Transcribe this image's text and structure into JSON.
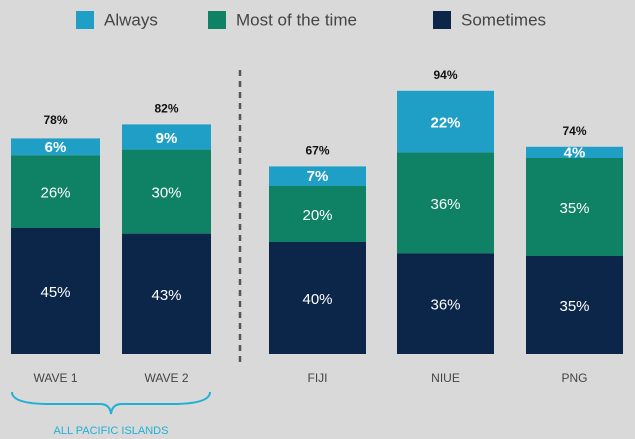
{
  "chart_data": {
    "type": "stacked_bar",
    "categories": [
      "WAVE 1",
      "WAVE 2",
      "FIJI",
      "NIUE",
      "PNG"
    ],
    "series": [
      {
        "name": "Always",
        "color": "#1f9ec6",
        "values": [
          6,
          9,
          7,
          22,
          4
        ],
        "value_labels": [
          "6%",
          "9%",
          "7%",
          "22%",
          "4%"
        ]
      },
      {
        "name": "Most of the time",
        "color": "#0f8165",
        "values": [
          26,
          30,
          20,
          36,
          35
        ],
        "value_labels": [
          "26%",
          "30%",
          "20%",
          "36%",
          "35%"
        ]
      },
      {
        "name": "Sometimes",
        "color": "#0b2649",
        "values": [
          45,
          43,
          40,
          36,
          35
        ],
        "value_labels": [
          "45%",
          "43%",
          "40%",
          "36%",
          "35%"
        ]
      }
    ],
    "totals": [
      78,
      82,
      67,
      94,
      74
    ],
    "total_labels": [
      "78%",
      "82%",
      "67%",
      "94%",
      "74%"
    ],
    "group_label": "ALL PACIFIC ISLANDS"
  }
}
